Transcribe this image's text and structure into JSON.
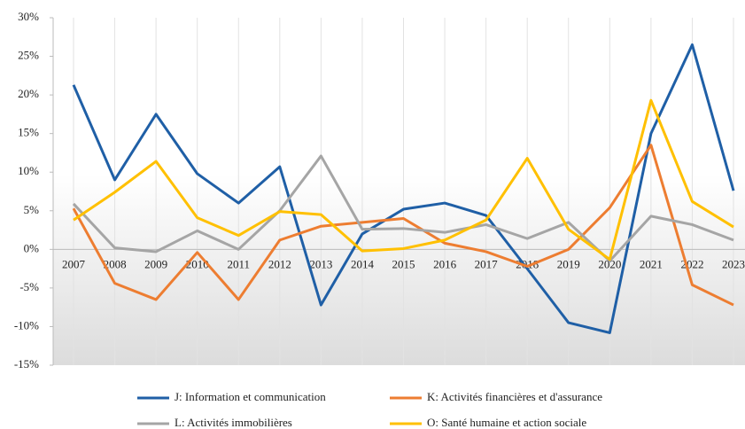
{
  "chart_data": {
    "type": "line",
    "categories": [
      "2007",
      "2008",
      "2009",
      "2010",
      "2011",
      "2012",
      "2013",
      "2014",
      "2015",
      "2016",
      "2017",
      "2018",
      "2019",
      "2020",
      "2021",
      "2022",
      "2023"
    ],
    "series": [
      {
        "name": "J: Information et communication",
        "color": "#1f5fa6",
        "values": [
          21.3,
          9,
          17.5,
          9.8,
          6,
          10.7,
          -7.2,
          2,
          5.2,
          6,
          4.4,
          -2.5,
          -9.5,
          -10.8,
          15,
          26.5,
          7.6
        ]
      },
      {
        "name": "K: Activités financières et d'assurance",
        "color": "#ed7d31",
        "values": [
          5.3,
          -4.4,
          -6.5,
          -0.4,
          -6.5,
          1.2,
          3,
          3.5,
          4,
          0.8,
          -0.3,
          -2.2,
          0,
          5.4,
          13.5,
          -4.6,
          -7.2
        ]
      },
      {
        "name": "L: Activités immobilières",
        "color": "#a5a5a5",
        "values": [
          5.9,
          0.2,
          -0.3,
          2.4,
          0,
          5,
          12.1,
          2.6,
          2.7,
          2.2,
          3.2,
          1.4,
          3.5,
          -1.5,
          4.3,
          3.2,
          1.2
        ]
      },
      {
        "name": "O: Santé humaine et action sociale",
        "color": "#ffc000",
        "values": [
          3.8,
          7.4,
          11.4,
          4.1,
          1.8,
          4.9,
          4.5,
          -0.2,
          0.1,
          1.2,
          3.8,
          11.8,
          2.6,
          -1.3,
          19.3,
          6.2,
          2.9
        ]
      }
    ],
    "ylim": [
      -15,
      30
    ],
    "yticks": [
      {
        "value": -15,
        "label": "-15%"
      },
      {
        "value": -10,
        "label": "-10%"
      },
      {
        "value": -5,
        "label": "-5%"
      },
      {
        "value": 0,
        "label": "0%"
      },
      {
        "value": 5,
        "label": "5%"
      },
      {
        "value": 10,
        "label": "10%"
      },
      {
        "value": 15,
        "label": "15%"
      },
      {
        "value": 20,
        "label": "20%"
      },
      {
        "value": 25,
        "label": "25%"
      },
      {
        "value": 30,
        "label": "30%"
      }
    ]
  }
}
